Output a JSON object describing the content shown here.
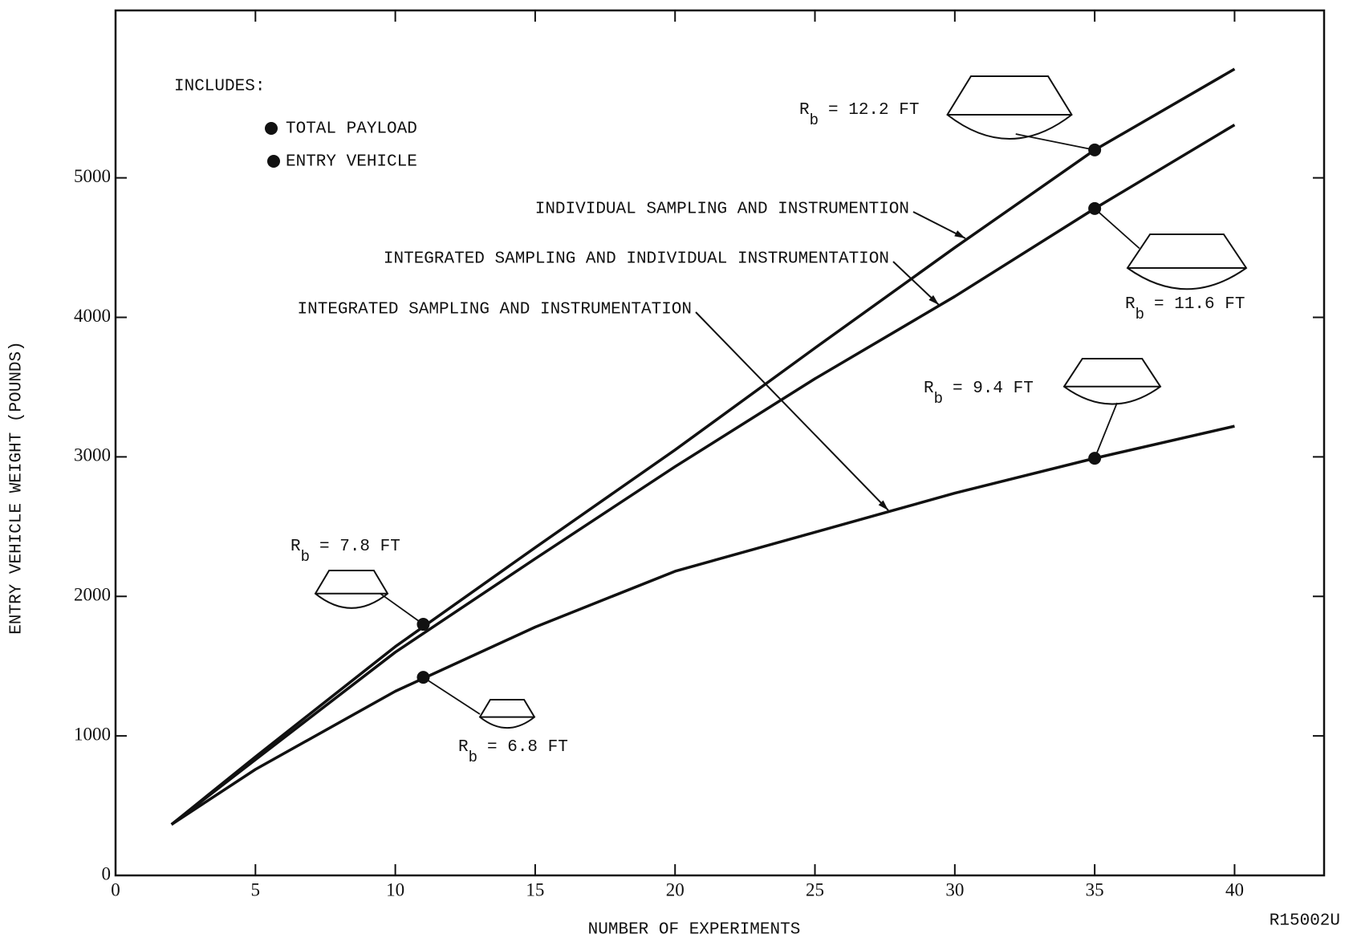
{
  "chart_data": {
    "type": "line",
    "x_label": "NUMBER OF EXPERIMENTS",
    "y_label": "ENTRY VEHICLE WEIGHT (POUNDS)",
    "code": "R15002U",
    "legend_title": "INCLUDES:",
    "legend_items": [
      "TOTAL PAYLOAD",
      "ENTRY VEHICLE"
    ],
    "xlim": [
      0,
      43.2
    ],
    "ylim": [
      0,
      6200
    ],
    "xticks": [
      0,
      5,
      10,
      15,
      20,
      25,
      30,
      35,
      40
    ],
    "yticks": [
      0,
      1000,
      2000,
      3000,
      4000,
      5000
    ],
    "color": "#111111",
    "x": [
      2,
      5,
      10,
      15,
      20,
      25,
      30,
      35,
      40
    ],
    "series": [
      {
        "name": "INDIVIDUAL SAMPLING AND INSTRUMENTION",
        "values": [
          365,
          850,
          1640,
          2350,
          3050,
          3780,
          4500,
          5200,
          5780
        ]
      },
      {
        "name": "INTEGRATED SAMPLING AND INDIVIDUAL INSTRUMENTATION",
        "values": [
          365,
          830,
          1600,
          2270,
          2930,
          3560,
          4150,
          4780,
          5380
        ]
      },
      {
        "name": "INTEGRATED SAMPLING AND INSTRUMENTATION",
        "values": [
          365,
          760,
          1320,
          1780,
          2180,
          2460,
          2740,
          2990,
          3220
        ]
      }
    ],
    "annotations": [
      {
        "x": 11,
        "y": 1800,
        "sym": "R",
        "sub": "b",
        "text": "= 7.8 FT"
      },
      {
        "x": 11,
        "y": 1420,
        "sym": "R",
        "sub": "b",
        "text": "= 6.8 FT"
      },
      {
        "x": 35,
        "y": 5200,
        "sym": "R",
        "sub": "b",
        "text": "= 12.2 FT"
      },
      {
        "x": 35,
        "y": 4780,
        "sym": "R",
        "sub": "b",
        "text": "= 11.6 FT"
      },
      {
        "x": 35,
        "y": 2990,
        "sym": "R",
        "sub": "b",
        "text": "= 9.4 FT"
      }
    ]
  }
}
